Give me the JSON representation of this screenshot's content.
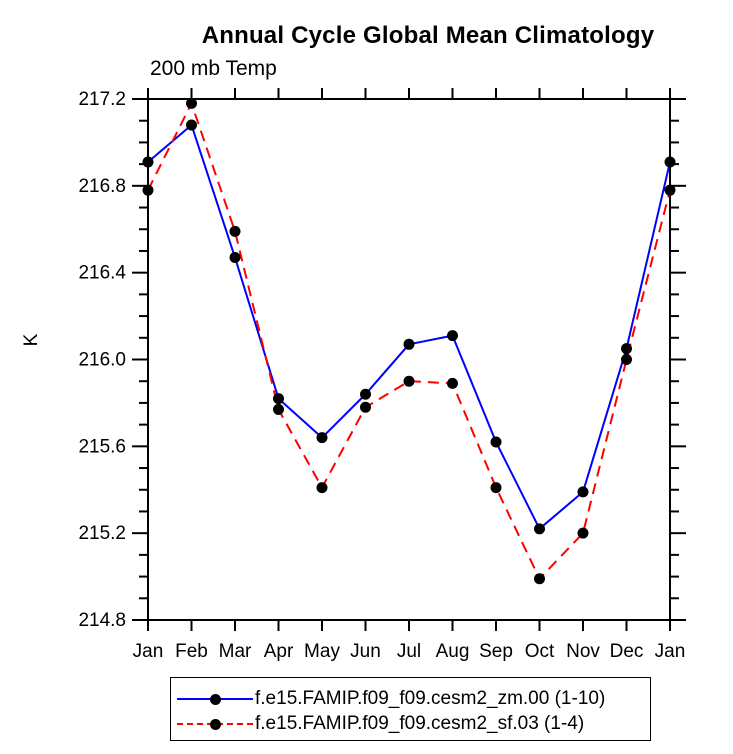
{
  "header": {
    "title": "Annual Cycle Global Mean Climatology",
    "subtitle": "200 mb Temp"
  },
  "chart_data": {
    "type": "line",
    "title": "Annual Cycle Global Mean Climatology",
    "subtitle": "200 mb Temp",
    "ylabel": "K",
    "categories": [
      "Jan",
      "Feb",
      "Mar",
      "Apr",
      "May",
      "Jun",
      "Jul",
      "Aug",
      "Sep",
      "Oct",
      "Nov",
      "Dec",
      "Jan"
    ],
    "ylim": [
      214.8,
      217.2
    ],
    "yticks": [
      214.8,
      215.2,
      215.6,
      216.0,
      216.4,
      216.8,
      217.2
    ],
    "ytick_labels": [
      "214.8",
      "215.2",
      "215.6",
      "216.0",
      "216.4",
      "216.8",
      "217.2"
    ],
    "minor_tick_interval": 0.1,
    "grid": false,
    "legend_position": "bottom",
    "axis_color": "#000000",
    "marker_color": "#000000",
    "series": [
      {
        "name": "f.e15.FAMIP.f09_f09.cesm2_zm.00 (1-10)",
        "color": "#0000ff",
        "style": "solid",
        "marker": "circle",
        "values": [
          216.91,
          217.08,
          216.47,
          215.82,
          215.64,
          215.84,
          216.07,
          216.11,
          215.62,
          215.22,
          215.39,
          216.05,
          216.91
        ]
      },
      {
        "name": "f.e15.FAMIP.f09_f09.cesm2_sf.03 (1-4)",
        "color": "#ff0000",
        "style": "dashed",
        "marker": "circle",
        "values": [
          216.78,
          217.18,
          216.59,
          215.77,
          215.41,
          215.78,
          215.9,
          215.89,
          215.41,
          214.99,
          215.2,
          216.0,
          216.78
        ]
      }
    ]
  }
}
